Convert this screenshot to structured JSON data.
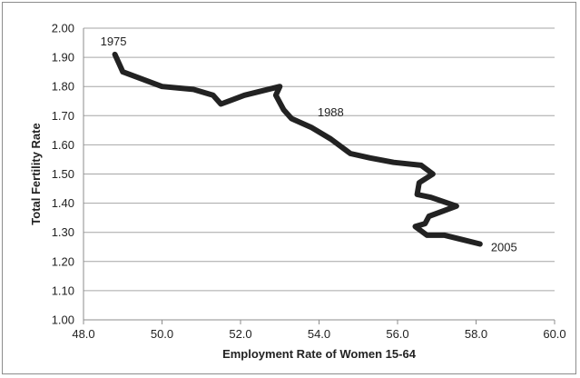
{
  "chart_data": {
    "type": "line",
    "xlabel": "Employment Rate of Women 15-64",
    "ylabel": "Total Fertility Rate",
    "xlim": [
      48.0,
      60.0
    ],
    "ylim": [
      1.0,
      2.0
    ],
    "x_ticks": [
      "48.0",
      "50.0",
      "52.0",
      "54.0",
      "56.0",
      "58.0",
      "60.0"
    ],
    "y_ticks": [
      "1.00",
      "1.10",
      "1.20",
      "1.30",
      "1.40",
      "1.50",
      "1.60",
      "1.70",
      "1.80",
      "1.90",
      "2.00"
    ],
    "grid": "horizontal",
    "legend": "none",
    "line_color": "#222222",
    "series": [
      {
        "points": [
          [
            48.8,
            1.91
          ],
          [
            49.0,
            1.85
          ],
          [
            50.0,
            1.8
          ],
          [
            50.8,
            1.79
          ],
          [
            51.3,
            1.77
          ],
          [
            51.5,
            1.74
          ],
          [
            52.1,
            1.77
          ],
          [
            53.0,
            1.8
          ],
          [
            52.9,
            1.77
          ],
          [
            53.1,
            1.72
          ],
          [
            53.3,
            1.69
          ],
          [
            53.8,
            1.66
          ],
          [
            54.3,
            1.62
          ],
          [
            54.8,
            1.57
          ],
          [
            55.3,
            1.555
          ],
          [
            55.9,
            1.54
          ],
          [
            56.6,
            1.53
          ],
          [
            56.9,
            1.5
          ],
          [
            56.55,
            1.47
          ],
          [
            56.5,
            1.43
          ],
          [
            56.85,
            1.42
          ],
          [
            57.5,
            1.39
          ],
          [
            56.8,
            1.355
          ],
          [
            56.7,
            1.33
          ],
          [
            56.45,
            1.32
          ],
          [
            56.75,
            1.29
          ],
          [
            57.2,
            1.29
          ],
          [
            58.1,
            1.26
          ]
        ]
      }
    ],
    "annotations": [
      {
        "text": "1975",
        "x": 48.8,
        "y": 1.91
      },
      {
        "text": "1988",
        "x": 53.8,
        "y": 1.66
      },
      {
        "text": "2005",
        "x": 58.1,
        "y": 1.26
      }
    ]
  }
}
